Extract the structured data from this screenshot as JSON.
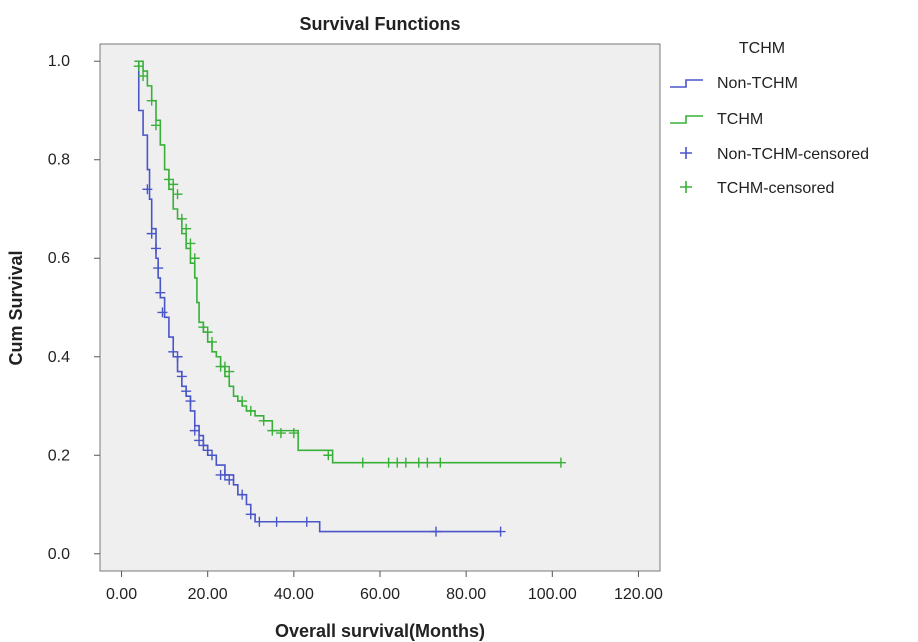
{
  "chart_data": {
    "type": "line",
    "title": "Survival Functions",
    "xlabel": "Overall survival(Months)",
    "ylabel": "Cum Survival",
    "xlim": [
      -5,
      125
    ],
    "ylim": [
      -0.035,
      1.035
    ],
    "xticks": [
      0,
      20,
      40,
      60,
      80,
      100,
      120
    ],
    "xtick_labels": [
      "0.00",
      "20.00",
      "40.00",
      "60.00",
      "80.00",
      "100.00",
      "120.00"
    ],
    "yticks": [
      0,
      0.2,
      0.4,
      0.6,
      0.8,
      1.0
    ],
    "ytick_labels": [
      "0.0",
      "0.2",
      "0.4",
      "0.6",
      "0.8",
      "1.0"
    ],
    "grid": false,
    "legend_placement": "outside-right",
    "legend_title": "TCHM",
    "legend": [
      {
        "label": "Non-TCHM",
        "kind": "line",
        "color": "#4a55c8"
      },
      {
        "label": "TCHM",
        "kind": "line",
        "color": "#38b038"
      },
      {
        "label": "Non-TCHM-censored",
        "kind": "censor",
        "color": "#4a55c8"
      },
      {
        "label": "TCHM-censored",
        "kind": "censor",
        "color": "#38b038"
      }
    ],
    "series": [
      {
        "name": "Non-TCHM",
        "color": "#4a55c8",
        "steps": [
          [
            3,
            1.0
          ],
          [
            4,
            0.9
          ],
          [
            5,
            0.85
          ],
          [
            6,
            0.78
          ],
          [
            6.5,
            0.72
          ],
          [
            7,
            0.66
          ],
          [
            8,
            0.6
          ],
          [
            8.5,
            0.56
          ],
          [
            9,
            0.52
          ],
          [
            10,
            0.48
          ],
          [
            11,
            0.44
          ],
          [
            12,
            0.4
          ],
          [
            13,
            0.37
          ],
          [
            14,
            0.34
          ],
          [
            15,
            0.32
          ],
          [
            16,
            0.29
          ],
          [
            17,
            0.26
          ],
          [
            18,
            0.24
          ],
          [
            19,
            0.22
          ],
          [
            20,
            0.2
          ],
          [
            22,
            0.18
          ],
          [
            24,
            0.16
          ],
          [
            26,
            0.14
          ],
          [
            27,
            0.12
          ],
          [
            29,
            0.1
          ],
          [
            30,
            0.08
          ],
          [
            31,
            0.065
          ],
          [
            46,
            0.045
          ],
          [
            88,
            0.045
          ]
        ],
        "censored": [
          [
            6,
            0.74
          ],
          [
            7,
            0.65
          ],
          [
            8,
            0.62
          ],
          [
            8.5,
            0.58
          ],
          [
            9,
            0.53
          ],
          [
            9.5,
            0.49
          ],
          [
            12,
            0.41
          ],
          [
            13,
            0.4
          ],
          [
            14,
            0.36
          ],
          [
            15,
            0.33
          ],
          [
            16,
            0.31
          ],
          [
            17,
            0.25
          ],
          [
            18,
            0.23
          ],
          [
            19,
            0.22
          ],
          [
            20,
            0.21
          ],
          [
            21,
            0.2
          ],
          [
            23,
            0.16
          ],
          [
            24,
            0.16
          ],
          [
            25,
            0.15
          ],
          [
            28,
            0.12
          ],
          [
            30,
            0.08
          ],
          [
            32,
            0.065
          ],
          [
            36,
            0.065
          ],
          [
            43,
            0.065
          ],
          [
            73,
            0.045
          ],
          [
            88,
            0.045
          ]
        ]
      },
      {
        "name": "TCHM",
        "color": "#38b038",
        "steps": [
          [
            3,
            1.0
          ],
          [
            5,
            0.98
          ],
          [
            6,
            0.95
          ],
          [
            7,
            0.92
          ],
          [
            8,
            0.88
          ],
          [
            9,
            0.83
          ],
          [
            10,
            0.78
          ],
          [
            11,
            0.74
          ],
          [
            12,
            0.7
          ],
          [
            13,
            0.68
          ],
          [
            14,
            0.65
          ],
          [
            15,
            0.62
          ],
          [
            16,
            0.59
          ],
          [
            17,
            0.56
          ],
          [
            17.5,
            0.51
          ],
          [
            18,
            0.47
          ],
          [
            19,
            0.45
          ],
          [
            20,
            0.43
          ],
          [
            21,
            0.41
          ],
          [
            22,
            0.4
          ],
          [
            23,
            0.38
          ],
          [
            24,
            0.36
          ],
          [
            25,
            0.34
          ],
          [
            26,
            0.32
          ],
          [
            27,
            0.31
          ],
          [
            28,
            0.3
          ],
          [
            29,
            0.29
          ],
          [
            31,
            0.28
          ],
          [
            33,
            0.27
          ],
          [
            35,
            0.25
          ],
          [
            41,
            0.21
          ],
          [
            49,
            0.185
          ],
          [
            102,
            0.185
          ]
        ],
        "censored": [
          [
            4,
            0.99
          ],
          [
            5,
            0.97
          ],
          [
            7,
            0.92
          ],
          [
            8,
            0.87
          ],
          [
            11,
            0.76
          ],
          [
            12,
            0.75
          ],
          [
            13,
            0.73
          ],
          [
            14,
            0.68
          ],
          [
            15,
            0.66
          ],
          [
            16,
            0.63
          ],
          [
            17,
            0.6
          ],
          [
            19,
            0.46
          ],
          [
            20,
            0.45
          ],
          [
            21,
            0.43
          ],
          [
            23,
            0.38
          ],
          [
            24,
            0.38
          ],
          [
            25,
            0.37
          ],
          [
            28,
            0.31
          ],
          [
            30,
            0.29
          ],
          [
            33,
            0.27
          ],
          [
            35,
            0.25
          ],
          [
            37,
            0.245
          ],
          [
            40,
            0.245
          ],
          [
            48,
            0.2
          ],
          [
            56,
            0.185
          ],
          [
            62,
            0.185
          ],
          [
            64,
            0.185
          ],
          [
            66,
            0.185
          ],
          [
            69,
            0.185
          ],
          [
            71,
            0.185
          ],
          [
            74,
            0.185
          ],
          [
            102,
            0.185
          ]
        ]
      }
    ]
  }
}
